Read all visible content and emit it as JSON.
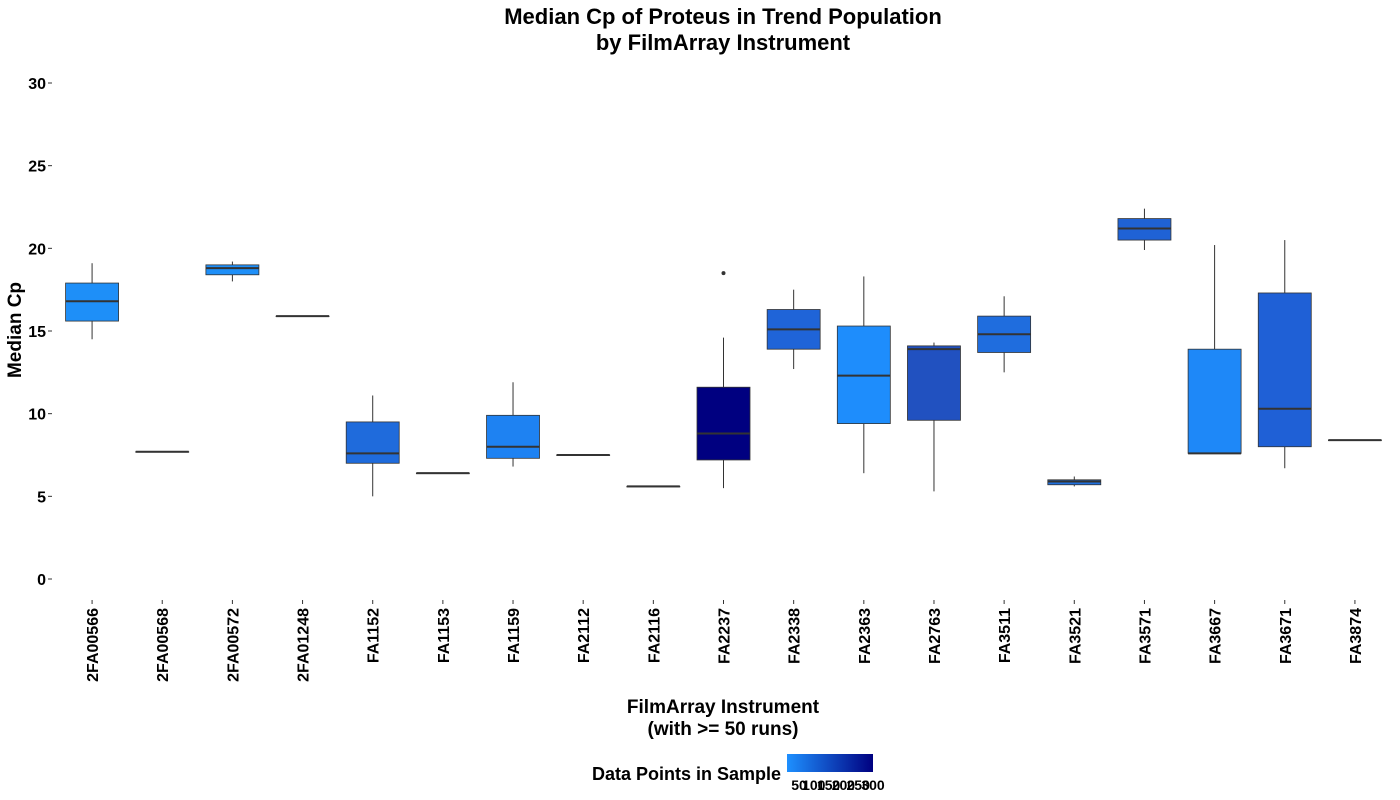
{
  "chart_data": {
    "type": "boxplot",
    "title": [
      "Median Cp of Proteus in Trend Population",
      "by FilmArray Instrument"
    ],
    "xlabel": [
      "FilmArray Instrument",
      "(with >= 50 runs)"
    ],
    "ylabel": "Median Cp",
    "ylim": [
      -1,
      30.5
    ],
    "yticks": [
      0,
      5,
      10,
      15,
      20,
      25,
      30
    ],
    "grid": false,
    "legend": {
      "title": "Data Points in Sample",
      "position": "bottom",
      "labels": [
        "50",
        "100",
        "150",
        "200",
        "250",
        "300"
      ],
      "color_low": "#1E90FF",
      "color_high": "#000080"
    },
    "categories": [
      "2FA00566",
      "2FA00568",
      "2FA00572",
      "2FA01248",
      "FA1152",
      "FA1153",
      "FA1159",
      "FA2112",
      "FA2116",
      "FA2237",
      "FA2338",
      "FA2363",
      "FA2763",
      "FA3511",
      "FA3521",
      "FA3571",
      "FA3667",
      "FA3671",
      "FA3874"
    ],
    "boxes": [
      {
        "min": 14.5,
        "q1": 15.6,
        "median": 16.8,
        "q3": 17.9,
        "max": 19.1,
        "outliers": [],
        "color": "#1E8FF8"
      },
      {
        "min": 7.7,
        "q1": 7.7,
        "median": 7.7,
        "q3": 7.7,
        "max": 7.7,
        "outliers": [],
        "color": "#1E90FF"
      },
      {
        "min": 18.0,
        "q1": 18.4,
        "median": 18.8,
        "q3": 19.0,
        "max": 19.2,
        "outliers": [],
        "color": "#1E8FF8"
      },
      {
        "min": 15.9,
        "q1": 15.9,
        "median": 15.9,
        "q3": 15.9,
        "max": 15.9,
        "outliers": [],
        "color": "#1E90FF"
      },
      {
        "min": 5.0,
        "q1": 7.0,
        "median": 7.6,
        "q3": 9.5,
        "max": 11.1,
        "outliers": [],
        "color": "#1F6BDC"
      },
      {
        "min": 6.4,
        "q1": 6.4,
        "median": 6.4,
        "q3": 6.4,
        "max": 6.4,
        "outliers": [],
        "color": "#1E90FF"
      },
      {
        "min": 6.8,
        "q1": 7.3,
        "median": 8.0,
        "q3": 9.9,
        "max": 11.9,
        "outliers": [],
        "color": "#1E82F2"
      },
      {
        "min": 7.5,
        "q1": 7.5,
        "median": 7.5,
        "q3": 7.5,
        "max": 7.5,
        "outliers": [],
        "color": "#1E90FF"
      },
      {
        "min": 5.6,
        "q1": 5.6,
        "median": 5.6,
        "q3": 5.6,
        "max": 5.6,
        "outliers": [],
        "color": "#1E90FF"
      },
      {
        "min": 5.5,
        "q1": 7.2,
        "median": 8.8,
        "q3": 11.6,
        "max": 14.6,
        "outliers": [
          18.5
        ],
        "color": "#000080"
      },
      {
        "min": 12.7,
        "q1": 13.9,
        "median": 15.1,
        "q3": 16.3,
        "max": 17.5,
        "outliers": [],
        "color": "#1F64D8"
      },
      {
        "min": 6.4,
        "q1": 9.4,
        "median": 12.3,
        "q3": 15.3,
        "max": 18.3,
        "outliers": [],
        "color": "#1E8DFC"
      },
      {
        "min": 5.3,
        "q1": 9.6,
        "median": 13.9,
        "q3": 14.1,
        "max": 14.3,
        "outliers": [],
        "color": "#2151C0"
      },
      {
        "min": 12.5,
        "q1": 13.7,
        "median": 14.8,
        "q3": 15.9,
        "max": 17.1,
        "outliers": [],
        "color": "#1F6DDE"
      },
      {
        "min": 5.6,
        "q1": 5.7,
        "median": 5.9,
        "q3": 6.0,
        "max": 6.2,
        "outliers": [],
        "color": "#1F70DF"
      },
      {
        "min": 19.9,
        "q1": 20.5,
        "median": 21.2,
        "q3": 21.8,
        "max": 22.4,
        "outliers": [],
        "color": "#1F62D5"
      },
      {
        "min": 7.6,
        "q1": 7.6,
        "median": 7.6,
        "q3": 13.9,
        "max": 20.2,
        "outliers": [],
        "color": "#1E88F8"
      },
      {
        "min": 6.7,
        "q1": 8.0,
        "median": 10.3,
        "q3": 17.3,
        "max": 20.5,
        "outliers": [],
        "color": "#1F60D6"
      },
      {
        "min": 8.4,
        "q1": 8.4,
        "median": 8.4,
        "q3": 8.4,
        "max": 8.4,
        "outliers": [],
        "color": "#1E90FF"
      }
    ]
  }
}
